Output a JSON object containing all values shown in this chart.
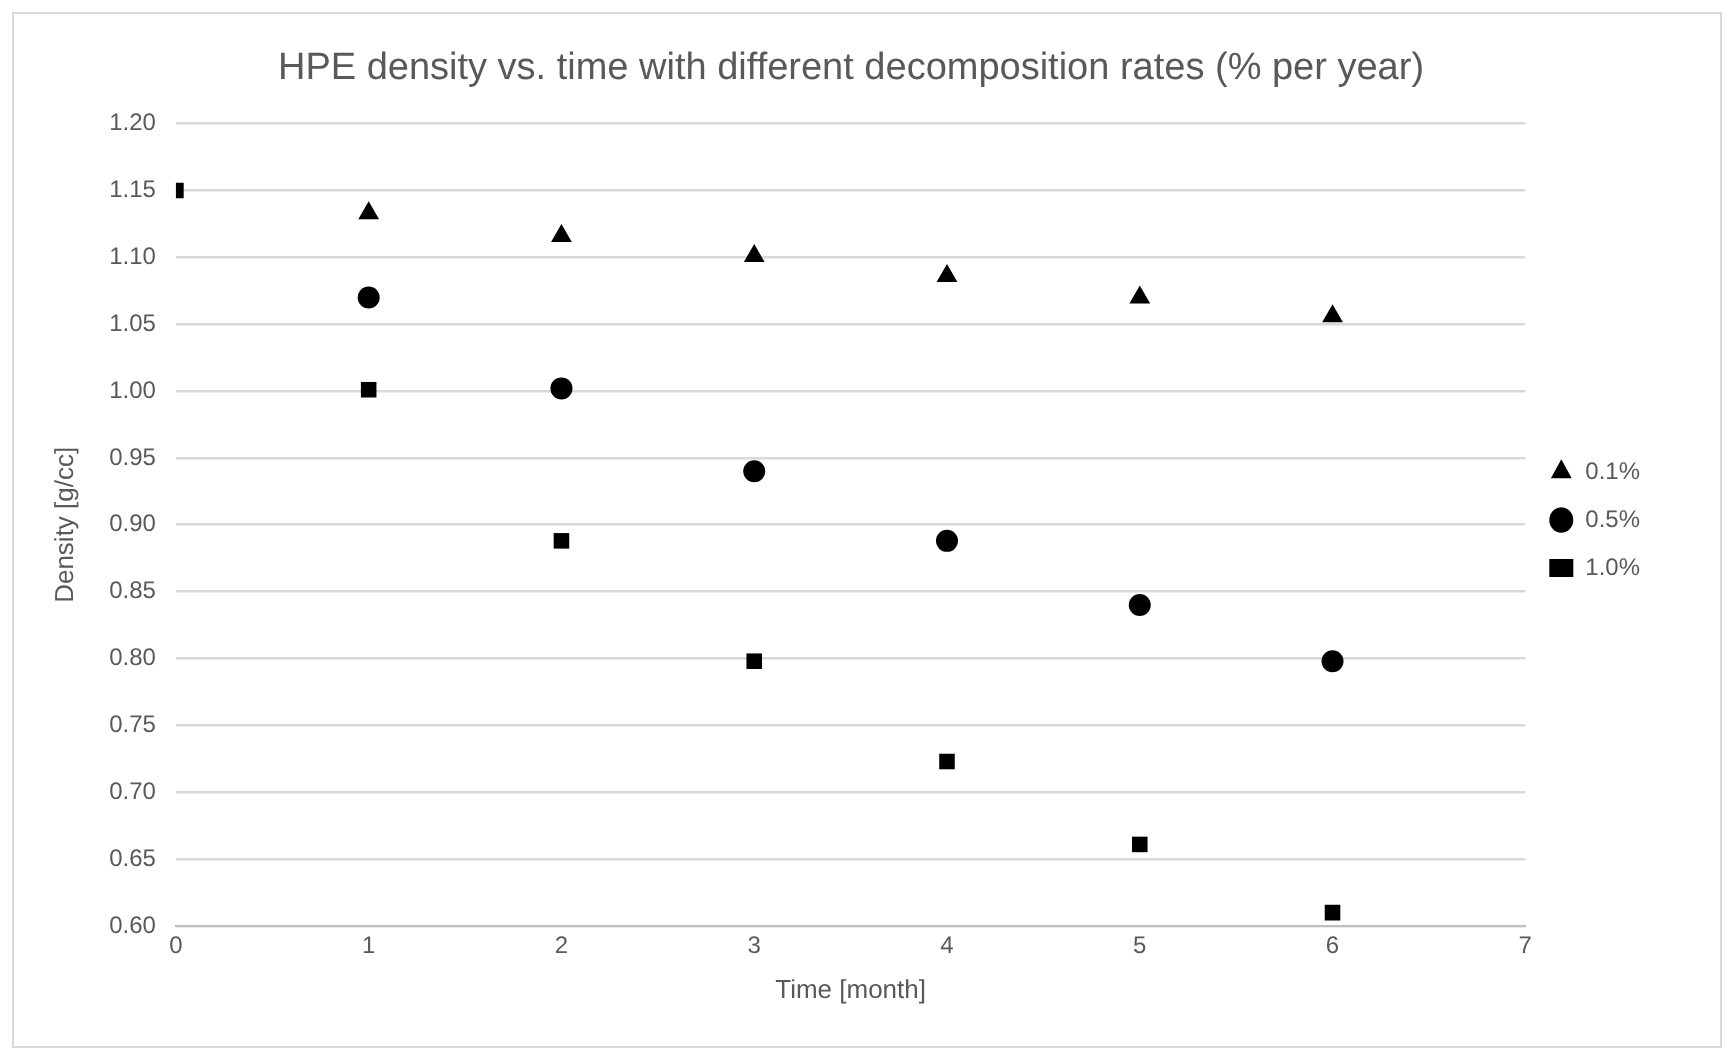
{
  "chart_data": {
    "type": "scatter",
    "title": "HPE density vs. time with different decomposition rates (% per year)",
    "xlabel": "Time [month]",
    "ylabel": "Density [g/cc]",
    "xlim": [
      0,
      7
    ],
    "xticks": [
      0,
      1,
      2,
      3,
      4,
      5,
      6,
      7
    ],
    "ylim": [
      0.6,
      1.2
    ],
    "yticks": [
      {
        "value": 0.6,
        "label": "0.60"
      },
      {
        "value": 0.65,
        "label": "0.65"
      },
      {
        "value": 0.7,
        "label": "0.70"
      },
      {
        "value": 0.75,
        "label": "0.75"
      },
      {
        "value": 0.8,
        "label": "0.80"
      },
      {
        "value": 0.85,
        "label": "0.85"
      },
      {
        "value": 0.9,
        "label": "0.90"
      },
      {
        "value": 0.95,
        "label": "0.95"
      },
      {
        "value": 1.0,
        "label": "1.00"
      },
      {
        "value": 1.05,
        "label": "1.05"
      },
      {
        "value": 1.1,
        "label": "1.10"
      },
      {
        "value": 1.15,
        "label": "1.15"
      },
      {
        "value": 1.2,
        "label": "1.20"
      }
    ],
    "grid": "y",
    "legend": "right",
    "series": [
      {
        "name": "0.1%",
        "color": "#000000",
        "marker": "triangle",
        "x": [
          1,
          2,
          3,
          4,
          5,
          6
        ],
        "values": [
          1.133,
          1.116,
          1.101,
          1.086,
          1.07,
          1.056
        ]
      },
      {
        "name": "0.5%",
        "color": "#000000",
        "marker": "circle",
        "x": [
          1,
          2,
          3,
          4,
          5,
          6
        ],
        "values": [
          1.07,
          1.002,
          0.94,
          0.888,
          0.84,
          0.798
        ]
      },
      {
        "name": "1.0%",
        "color": "#000000",
        "marker": "square",
        "x": [
          0,
          1,
          2,
          3,
          4,
          5,
          6
        ],
        "values": [
          1.15,
          1.001,
          0.888,
          0.798,
          0.723,
          0.661,
          0.61
        ]
      }
    ]
  }
}
